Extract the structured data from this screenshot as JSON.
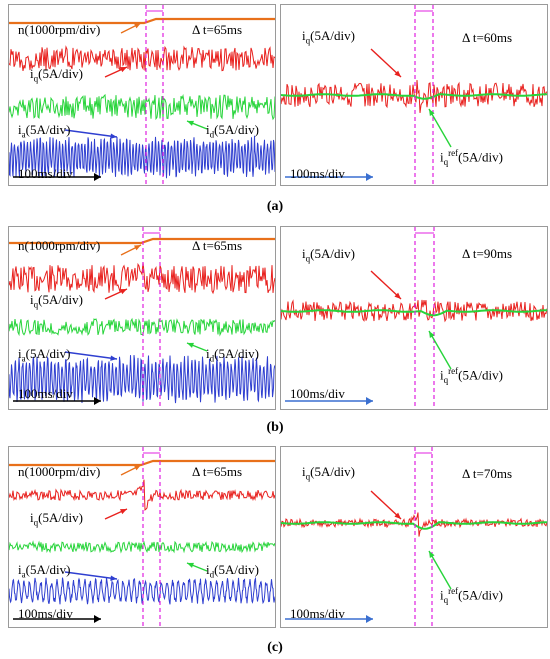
{
  "chart_data": [
    {
      "type": "oscilloscope",
      "panel": "(a)",
      "left": {
        "traces": [
          {
            "label": "n(1000rpm/div)",
            "color": "#e8701a"
          },
          {
            "label": "iq(5A/div)",
            "color": "#e8211e"
          },
          {
            "label": "ia(5A/div)",
            "color": "#2f3fd0"
          },
          {
            "label": "id(5A/div)",
            "color": "#27d43a"
          }
        ],
        "delta_t": "Δ t=65ms",
        "timebase": "100ms/div"
      },
      "right": {
        "traces": [
          {
            "label": "iq(5A/div)",
            "color": "#e8211e"
          },
          {
            "label": "iqref(5A/div)",
            "color": "#27d43a"
          }
        ],
        "delta_t": "Δ t=60ms",
        "timebase": "100ms/div"
      }
    },
    {
      "type": "oscilloscope",
      "panel": "(b)",
      "left": {
        "traces": [
          {
            "label": "n(1000rpm/div)",
            "color": "#e8701a"
          },
          {
            "label": "iq(5A/div)",
            "color": "#e8211e"
          },
          {
            "label": "ia(5A/div)",
            "color": "#2f3fd0"
          },
          {
            "label": "id(5A/div)",
            "color": "#27d43a"
          }
        ],
        "delta_t": "Δ t=65ms",
        "timebase": "100ms/div"
      },
      "right": {
        "traces": [
          {
            "label": "iq(5A/div)",
            "color": "#e8211e"
          },
          {
            "label": "iqref(5A/div)",
            "color": "#27d43a"
          }
        ],
        "delta_t": "Δ t=90ms",
        "timebase": "100ms/div"
      }
    },
    {
      "type": "oscilloscope",
      "panel": "(c)",
      "left": {
        "traces": [
          {
            "label": "n(1000rpm/div)",
            "color": "#e8701a"
          },
          {
            "label": "iq(5A/div)",
            "color": "#e8211e"
          },
          {
            "label": "ia(5A/div)",
            "color": "#2f3fd0"
          },
          {
            "label": "id(5A/div)",
            "color": "#27d43a"
          }
        ],
        "delta_t": "Δ t=65ms",
        "timebase": "100ms/div"
      },
      "right": {
        "traces": [
          {
            "label": "iq(5A/div)",
            "color": "#e8211e"
          },
          {
            "label": "iqref(5A/div)",
            "color": "#27d43a"
          }
        ],
        "delta_t": "Δ t=70ms",
        "timebase": "100ms/div"
      }
    }
  ],
  "text": {
    "n_label": "n(1000rpm/div)",
    "iq_main": "i",
    "iq_sub": "q",
    "ia_sub": "a",
    "id_sub": "d",
    "unit": "(5A/div)",
    "ref_sup": "ref",
    "a": {
      "caption": "(a)",
      "dt_left": "Δ t=65ms",
      "dt_right": "Δ t=60ms",
      "time_left": "100ms/div",
      "time_right": "100ms/div"
    },
    "b": {
      "caption": "(b)",
      "dt_left": "Δ t=65ms",
      "dt_right": "Δ t=90ms",
      "time_left": "100ms/div",
      "time_right": "100ms/div"
    },
    "c": {
      "caption": "(c)",
      "dt_left": "Δ t=65ms",
      "dt_right": "Δ t=70ms",
      "time_left": "100ms/div",
      "time_right": "100ms/div"
    }
  },
  "colors": {
    "speed": "#e8701a",
    "iq": "#e8211e",
    "id": "#27d43a",
    "ia": "#2f3fd0",
    "cursor": "#e020e0",
    "iqref": "#27d43a"
  }
}
